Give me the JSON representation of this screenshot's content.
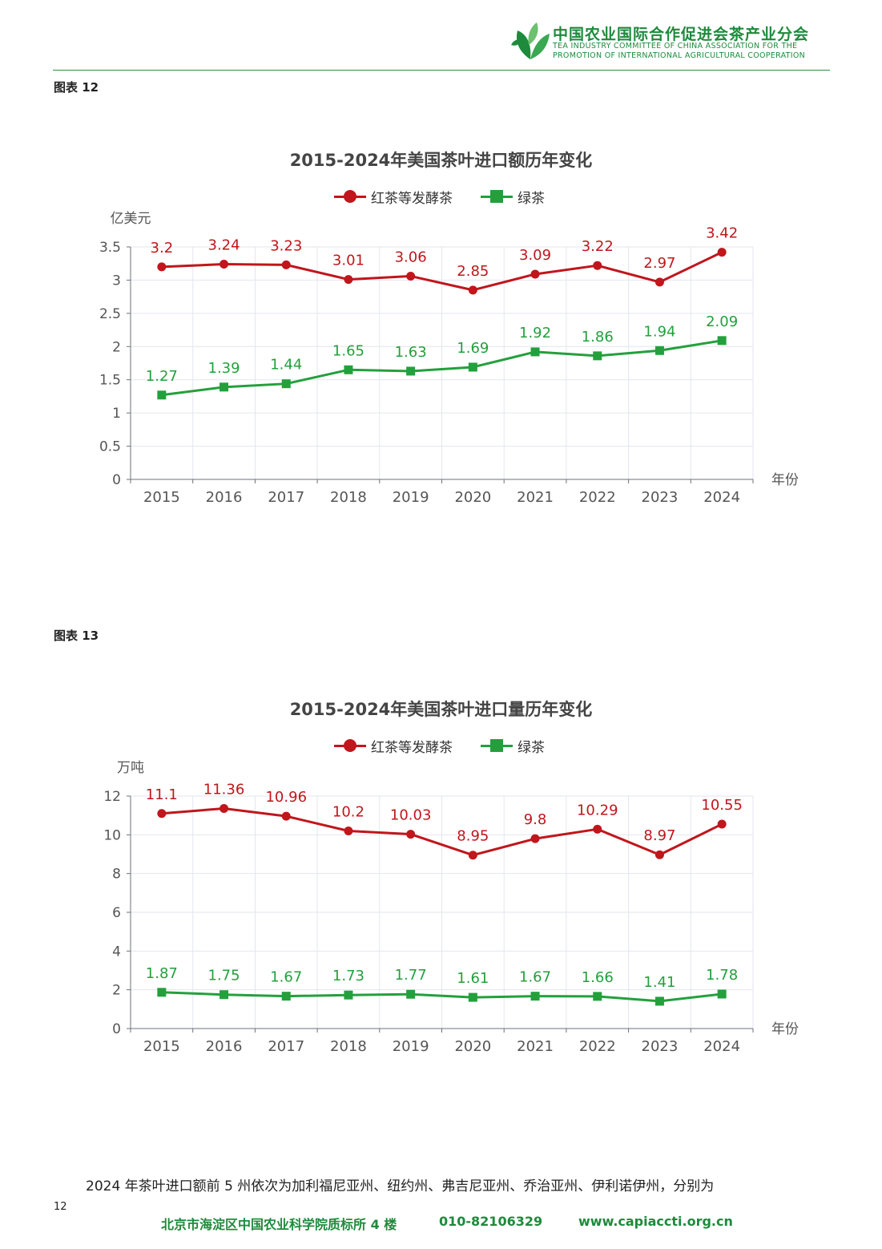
{
  "header": {
    "org_cn": "中国农业国际合作促进会茶产业分会",
    "org_en_line1": "TEA INDUSTRY COMMITTEE OF CHINA ASSOCIATION FOR THE",
    "org_en_line2": "PROMOTION OF INTERNATIONAL AGRICULTURAL COOPERATION",
    "logo_icon": "tea-leaf-logo-icon",
    "accent_color": "#1e8a3c"
  },
  "figures": [
    {
      "label": "图表 12"
    },
    {
      "label": "图表 13"
    }
  ],
  "chart_data": [
    {
      "type": "line",
      "title": "2015-2024年美国茶叶进口额历年变化",
      "ylabel": "亿美元",
      "xlabel": "年份",
      "categories": [
        "2015",
        "2016",
        "2017",
        "2018",
        "2019",
        "2020",
        "2021",
        "2022",
        "2023",
        "2024"
      ],
      "yticks": [
        "0",
        "0.5",
        "1",
        "1.5",
        "2",
        "2.5",
        "3",
        "3.5"
      ],
      "ylim": [
        0,
        3.5
      ],
      "grid": true,
      "legend_position": "top-center",
      "series": [
        {
          "name": "红茶等发酵茶",
          "color": "#c0161c",
          "marker": "circle",
          "values": [
            3.2,
            3.24,
            3.23,
            3.01,
            3.06,
            2.85,
            3.09,
            3.22,
            2.97,
            3.42
          ],
          "labels": [
            "3.2",
            "3.24",
            "3.23",
            "3.01",
            "3.06",
            "2.85",
            "3.09",
            "3.22",
            "2.97",
            "3.42"
          ]
        },
        {
          "name": "绿茶",
          "color": "#23a03c",
          "marker": "square",
          "values": [
            1.27,
            1.39,
            1.44,
            1.65,
            1.63,
            1.69,
            1.92,
            1.86,
            1.94,
            2.09
          ],
          "labels": [
            "1.27",
            "1.39",
            "1.44",
            "1.65",
            "1.63",
            "1.69",
            "1.92",
            "1.86",
            "1.94",
            "2.09"
          ]
        }
      ]
    },
    {
      "type": "line",
      "title": "2015-2024年美国茶叶进口量历年变化",
      "ylabel": "万吨",
      "xlabel": "年份",
      "categories": [
        "2015",
        "2016",
        "2017",
        "2018",
        "2019",
        "2020",
        "2021",
        "2022",
        "2023",
        "2024"
      ],
      "yticks": [
        "0",
        "2",
        "4",
        "6",
        "8",
        "10",
        "12"
      ],
      "ylim": [
        0,
        12
      ],
      "grid": true,
      "legend_position": "top-center",
      "series": [
        {
          "name": "红茶等发酵茶",
          "color": "#c0161c",
          "marker": "circle",
          "values": [
            11.1,
            11.36,
            10.96,
            10.2,
            10.03,
            8.95,
            9.8,
            10.29,
            8.97,
            10.55
          ],
          "labels": [
            "11.1",
            "11.36",
            "10.96",
            "10.2",
            "10.03",
            "8.95",
            "9.8",
            "10.29",
            "8.97",
            "10.55"
          ]
        },
        {
          "name": "绿茶",
          "color": "#23a03c",
          "marker": "square",
          "values": [
            1.87,
            1.75,
            1.67,
            1.73,
            1.77,
            1.61,
            1.67,
            1.66,
            1.41,
            1.78
          ],
          "labels": [
            "1.87",
            "1.75",
            "1.67",
            "1.73",
            "1.77",
            "1.61",
            "1.67",
            "1.66",
            "1.41",
            "1.78"
          ]
        }
      ]
    }
  ],
  "body_text": "2024 年茶叶进口额前 5 州依次为加利福尼亚州、纽约州、弗吉尼亚州、乔治亚州、伊利诺伊州，分别为",
  "page_number": "12",
  "footer": {
    "address": "北京市海淀区中国农业科学院质标所 4 楼",
    "phone": "010-82106329",
    "website": "www.capiaccti.org.cn"
  }
}
